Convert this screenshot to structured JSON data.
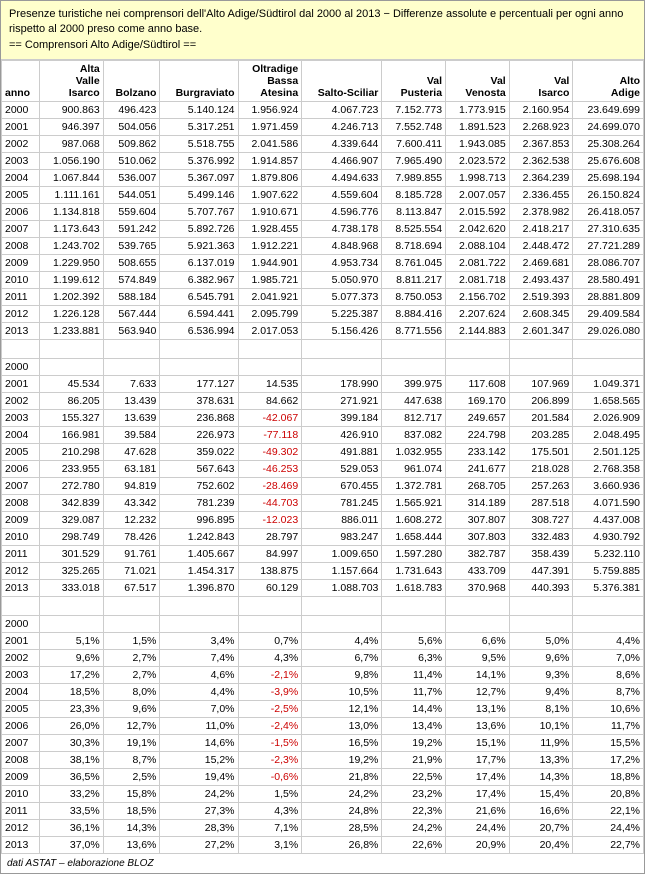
{
  "header": {
    "line1": "Presenze turistiche nei comprensori dell'Alto Adige/Südtirol dal 2000 al 2013 − Differenze assolute e percentuali per ogni anno rispetto al 2000 preso come anno base.",
    "line2": "== Comprensori Alto Adige/Südtirol =="
  },
  "columns": [
    "anno",
    "Alta Valle Isarco",
    "Bolzano",
    "Burgraviato",
    "Oltradige Bassa Atesina",
    "Salto-Sciliar",
    "Val Pusteria",
    "Val Venosta",
    "Val Isarco",
    "Alto Adige"
  ],
  "block1": [
    [
      "2000",
      "900.863",
      "496.423",
      "5.140.124",
      "1.956.924",
      "4.067.723",
      "7.152.773",
      "1.773.915",
      "2.160.954",
      "23.649.699"
    ],
    [
      "2001",
      "946.397",
      "504.056",
      "5.317.251",
      "1.971.459",
      "4.246.713",
      "7.552.748",
      "1.891.523",
      "2.268.923",
      "24.699.070"
    ],
    [
      "2002",
      "987.068",
      "509.862",
      "5.518.755",
      "2.041.586",
      "4.339.644",
      "7.600.411",
      "1.943.085",
      "2.367.853",
      "25.308.264"
    ],
    [
      "2003",
      "1.056.190",
      "510.062",
      "5.376.992",
      "1.914.857",
      "4.466.907",
      "7.965.490",
      "2.023.572",
      "2.362.538",
      "25.676.608"
    ],
    [
      "2004",
      "1.067.844",
      "536.007",
      "5.367.097",
      "1.879.806",
      "4.494.633",
      "7.989.855",
      "1.998.713",
      "2.364.239",
      "25.698.194"
    ],
    [
      "2005",
      "1.111.161",
      "544.051",
      "5.499.146",
      "1.907.622",
      "4.559.604",
      "8.185.728",
      "2.007.057",
      "2.336.455",
      "26.150.824"
    ],
    [
      "2006",
      "1.134.818",
      "559.604",
      "5.707.767",
      "1.910.671",
      "4.596.776",
      "8.113.847",
      "2.015.592",
      "2.378.982",
      "26.418.057"
    ],
    [
      "2007",
      "1.173.643",
      "591.242",
      "5.892.726",
      "1.928.455",
      "4.738.178",
      "8.525.554",
      "2.042.620",
      "2.418.217",
      "27.310.635"
    ],
    [
      "2008",
      "1.243.702",
      "539.765",
      "5.921.363",
      "1.912.221",
      "4.848.968",
      "8.718.694",
      "2.088.104",
      "2.448.472",
      "27.721.289"
    ],
    [
      "2009",
      "1.229.950",
      "508.655",
      "6.137.019",
      "1.944.901",
      "4.953.734",
      "8.761.045",
      "2.081.722",
      "2.469.681",
      "28.086.707"
    ],
    [
      "2010",
      "1.199.612",
      "574.849",
      "6.382.967",
      "1.985.721",
      "5.050.970",
      "8.811.217",
      "2.081.718",
      "2.493.437",
      "28.580.491"
    ],
    [
      "2011",
      "1.202.392",
      "588.184",
      "6.545.791",
      "2.041.921",
      "5.077.373",
      "8.750.053",
      "2.156.702",
      "2.519.393",
      "28.881.809"
    ],
    [
      "2012",
      "1.226.128",
      "567.444",
      "6.594.441",
      "2.095.799",
      "5.225.387",
      "8.884.416",
      "2.207.624",
      "2.608.345",
      "29.409.584"
    ],
    [
      "2013",
      "1.233.881",
      "563.940",
      "6.536.994",
      "2.017.053",
      "5.156.426",
      "8.771.556",
      "2.144.883",
      "2.601.347",
      "29.026.080"
    ]
  ],
  "block2": [
    [
      "2000",
      "",
      "",
      "",
      "",
      "",
      "",
      "",
      "",
      ""
    ],
    [
      "2001",
      "45.534",
      "7.633",
      "177.127",
      "14.535",
      "178.990",
      "399.975",
      "117.608",
      "107.969",
      "1.049.371"
    ],
    [
      "2002",
      "86.205",
      "13.439",
      "378.631",
      "84.662",
      "271.921",
      "447.638",
      "169.170",
      "206.899",
      "1.658.565"
    ],
    [
      "2003",
      "155.327",
      "13.639",
      "236.868",
      "-42.067",
      "399.184",
      "812.717",
      "249.657",
      "201.584",
      "2.026.909"
    ],
    [
      "2004",
      "166.981",
      "39.584",
      "226.973",
      "-77.118",
      "426.910",
      "837.082",
      "224.798",
      "203.285",
      "2.048.495"
    ],
    [
      "2005",
      "210.298",
      "47.628",
      "359.022",
      "-49.302",
      "491.881",
      "1.032.955",
      "233.142",
      "175.501",
      "2.501.125"
    ],
    [
      "2006",
      "233.955",
      "63.181",
      "567.643",
      "-46.253",
      "529.053",
      "961.074",
      "241.677",
      "218.028",
      "2.768.358"
    ],
    [
      "2007",
      "272.780",
      "94.819",
      "752.602",
      "-28.469",
      "670.455",
      "1.372.781",
      "268.705",
      "257.263",
      "3.660.936"
    ],
    [
      "2008",
      "342.839",
      "43.342",
      "781.239",
      "-44.703",
      "781.245",
      "1.565.921",
      "314.189",
      "287.518",
      "4.071.590"
    ],
    [
      "2009",
      "329.087",
      "12.232",
      "996.895",
      "-12.023",
      "886.011",
      "1.608.272",
      "307.807",
      "308.727",
      "4.437.008"
    ],
    [
      "2010",
      "298.749",
      "78.426",
      "1.242.843",
      "28.797",
      "983.247",
      "1.658.444",
      "307.803",
      "332.483",
      "4.930.792"
    ],
    [
      "2011",
      "301.529",
      "91.761",
      "1.405.667",
      "84.997",
      "1.009.650",
      "1.597.280",
      "382.787",
      "358.439",
      "5.232.110"
    ],
    [
      "2012",
      "325.265",
      "71.021",
      "1.454.317",
      "138.875",
      "1.157.664",
      "1.731.643",
      "433.709",
      "447.391",
      "5.759.885"
    ],
    [
      "2013",
      "333.018",
      "67.517",
      "1.396.870",
      "60.129",
      "1.088.703",
      "1.618.783",
      "370.968",
      "440.393",
      "5.376.381"
    ]
  ],
  "block3": [
    [
      "2000",
      "",
      "",
      "",
      "",
      "",
      "",
      "",
      "",
      ""
    ],
    [
      "2001",
      "5,1%",
      "1,5%",
      "3,4%",
      "0,7%",
      "4,4%",
      "5,6%",
      "6,6%",
      "5,0%",
      "4,4%"
    ],
    [
      "2002",
      "9,6%",
      "2,7%",
      "7,4%",
      "4,3%",
      "6,7%",
      "6,3%",
      "9,5%",
      "9,6%",
      "7,0%"
    ],
    [
      "2003",
      "17,2%",
      "2,7%",
      "4,6%",
      "-2,1%",
      "9,8%",
      "11,4%",
      "14,1%",
      "9,3%",
      "8,6%"
    ],
    [
      "2004",
      "18,5%",
      "8,0%",
      "4,4%",
      "-3,9%",
      "10,5%",
      "11,7%",
      "12,7%",
      "9,4%",
      "8,7%"
    ],
    [
      "2005",
      "23,3%",
      "9,6%",
      "7,0%",
      "-2,5%",
      "12,1%",
      "14,4%",
      "13,1%",
      "8,1%",
      "10,6%"
    ],
    [
      "2006",
      "26,0%",
      "12,7%",
      "11,0%",
      "-2,4%",
      "13,0%",
      "13,4%",
      "13,6%",
      "10,1%",
      "11,7%"
    ],
    [
      "2007",
      "30,3%",
      "19,1%",
      "14,6%",
      "-1,5%",
      "16,5%",
      "19,2%",
      "15,1%",
      "11,9%",
      "15,5%"
    ],
    [
      "2008",
      "38,1%",
      "8,7%",
      "15,2%",
      "-2,3%",
      "19,2%",
      "21,9%",
      "17,7%",
      "13,3%",
      "17,2%"
    ],
    [
      "2009",
      "36,5%",
      "2,5%",
      "19,4%",
      "-0,6%",
      "21,8%",
      "22,5%",
      "17,4%",
      "14,3%",
      "18,8%"
    ],
    [
      "2010",
      "33,2%",
      "15,8%",
      "24,2%",
      "1,5%",
      "24,2%",
      "23,2%",
      "17,4%",
      "15,4%",
      "20,8%"
    ],
    [
      "2011",
      "33,5%",
      "18,5%",
      "27,3%",
      "4,3%",
      "24,8%",
      "22,3%",
      "21,6%",
      "16,6%",
      "22,1%"
    ],
    [
      "2012",
      "36,1%",
      "14,3%",
      "28,3%",
      "7,1%",
      "28,5%",
      "24,2%",
      "24,4%",
      "20,7%",
      "24,4%"
    ],
    [
      "2013",
      "37,0%",
      "13,6%",
      "27,2%",
      "3,1%",
      "26,8%",
      "22,6%",
      "20,9%",
      "20,4%",
      "22,7%"
    ]
  ],
  "footer": "dati ASTAT – elaborazione BLOZ"
}
